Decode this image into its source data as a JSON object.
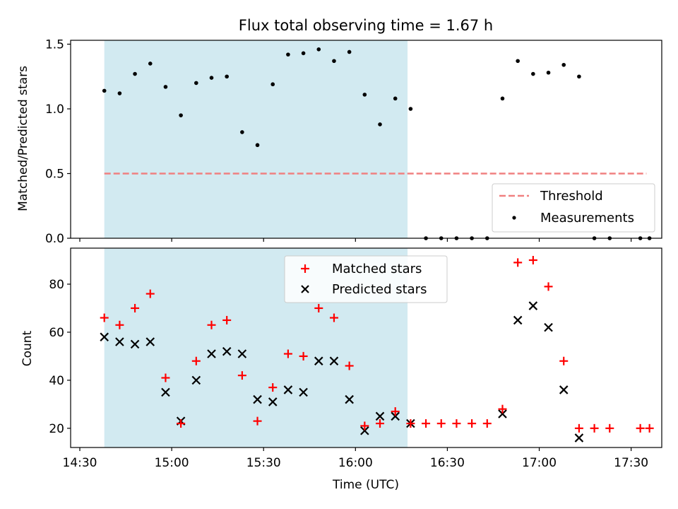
{
  "chart_data": [
    {
      "type": "scatter",
      "title": "Flux total observing time = 1.67 h",
      "xlabel": "",
      "ylabel": "Matched/Predicted stars",
      "xlim": [
        "14:27",
        "17:40"
      ],
      "ylim": [
        0,
        1.53
      ],
      "yticks": [
        "0.0",
        "0.5",
        "1.0",
        "1.5"
      ],
      "grid": false,
      "legend_position": "lower-right",
      "shaded_span": {
        "start": "14:38",
        "end": "16:17",
        "color": "#add8e6"
      },
      "series": [
        {
          "name": "Threshold",
          "style": "dashed-line",
          "color": "#f08080",
          "x": [
            "14:38",
            "17:35"
          ],
          "y": [
            0.5,
            0.5
          ]
        },
        {
          "name": "Measurements",
          "style": "dot",
          "color": "#000000",
          "x": [
            "14:38",
            "14:43",
            "14:48",
            "14:53",
            "14:58",
            "15:03",
            "15:08",
            "15:13",
            "15:18",
            "15:23",
            "15:28",
            "15:33",
            "15:38",
            "15:43",
            "15:48",
            "15:53",
            "15:58",
            "16:03",
            "16:08",
            "16:13",
            "16:18",
            "16:23",
            "16:28",
            "16:33",
            "16:38",
            "16:43",
            "16:48",
            "16:53",
            "16:58",
            "17:03",
            "17:08",
            "17:13",
            "17:18",
            "17:23",
            "17:33",
            "17:36"
          ],
          "y": [
            1.14,
            1.12,
            1.27,
            1.35,
            1.17,
            0.95,
            1.2,
            1.24,
            1.25,
            0.82,
            0.72,
            1.19,
            1.42,
            1.43,
            1.46,
            1.37,
            1.44,
            1.11,
            0.88,
            1.08,
            1.0,
            0.0,
            0.0,
            0.0,
            0.0,
            0.0,
            1.08,
            1.37,
            1.27,
            1.28,
            1.34,
            1.25,
            0.0,
            0.0,
            0.0,
            0.0
          ]
        }
      ]
    },
    {
      "type": "scatter",
      "title": "",
      "xlabel": "Time (UTC)",
      "ylabel": "Count",
      "xlim": [
        "14:27",
        "17:40"
      ],
      "ylim": [
        12,
        95
      ],
      "yticks": [
        "20",
        "40",
        "60",
        "80"
      ],
      "xticks": [
        "14:30",
        "15:00",
        "15:30",
        "16:00",
        "16:30",
        "17:00",
        "17:30"
      ],
      "grid": false,
      "legend_position": "upper-center",
      "shaded_span": {
        "start": "14:38",
        "end": "16:17",
        "color": "#add8e6"
      },
      "series": [
        {
          "name": "Matched stars",
          "marker": "plus",
          "color": "#ff0000",
          "x": [
            "14:38",
            "14:43",
            "14:48",
            "14:53",
            "14:58",
            "15:03",
            "15:08",
            "15:13",
            "15:18",
            "15:23",
            "15:28",
            "15:33",
            "15:38",
            "15:43",
            "15:48",
            "15:53",
            "15:58",
            "16:03",
            "16:08",
            "16:13",
            "16:18",
            "16:23",
            "16:28",
            "16:33",
            "16:38",
            "16:43",
            "16:48",
            "16:53",
            "16:58",
            "17:03",
            "17:08",
            "17:13",
            "17:18",
            "17:23",
            "17:33",
            "17:36"
          ],
          "y": [
            66,
            63,
            70,
            76,
            41,
            22,
            48,
            63,
            65,
            42,
            23,
            37,
            51,
            50,
            70,
            66,
            46,
            21,
            22,
            27,
            22,
            22,
            22,
            22,
            22,
            22,
            28,
            89,
            90,
            79,
            48,
            20,
            20,
            20,
            20,
            20
          ]
        },
        {
          "name": "Predicted stars",
          "marker": "x",
          "color": "#000000",
          "x": [
            "14:38",
            "14:43",
            "14:48",
            "14:53",
            "14:58",
            "15:03",
            "15:08",
            "15:13",
            "15:18",
            "15:23",
            "15:28",
            "15:33",
            "15:38",
            "15:43",
            "15:48",
            "15:53",
            "15:58",
            "16:03",
            "16:08",
            "16:13",
            "16:18",
            "16:48",
            "16:53",
            "16:58",
            "17:03",
            "17:08",
            "17:13"
          ],
          "y": [
            58,
            56,
            55,
            56,
            35,
            23,
            40,
            51,
            52,
            51,
            32,
            31,
            36,
            35,
            48,
            48,
            32,
            19,
            25,
            25,
            22,
            26,
            65,
            71,
            62,
            36,
            16
          ]
        }
      ]
    }
  ]
}
